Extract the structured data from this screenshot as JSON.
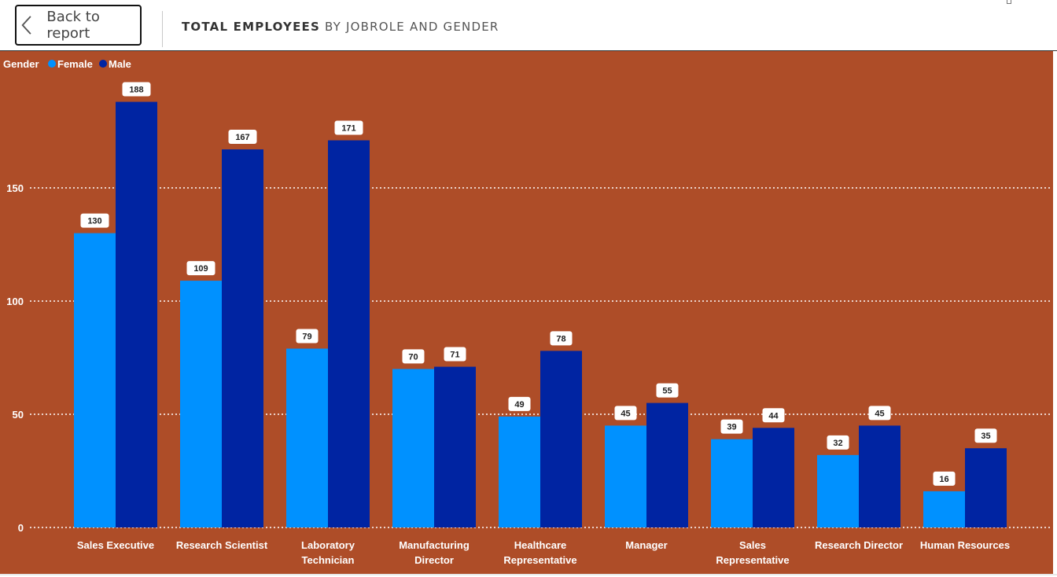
{
  "header": {
    "back_label": "Back to report",
    "title": "TOTAL EMPLOYEES",
    "subtitle": "BY JOBROLE AND GENDER"
  },
  "colors": {
    "background": "#AE4D28",
    "female": "#0091FF",
    "male": "#0024A2",
    "text": "#FFFFFF"
  },
  "legend": {
    "title": "Gender",
    "items": [
      "Female",
      "Male"
    ],
    "placement": "top-left"
  },
  "chart_data": {
    "type": "bar",
    "title": "",
    "xlabel": "",
    "ylabel": "",
    "categories": [
      [
        "Sales Executive"
      ],
      [
        "Research Scientist"
      ],
      [
        "Laboratory",
        "Technician"
      ],
      [
        "Manufacturing",
        "Director"
      ],
      [
        "Healthcare",
        "Representative"
      ],
      [
        "Manager"
      ],
      [
        "Sales",
        "Representative"
      ],
      [
        "Research Director"
      ],
      [
        "Human Resources"
      ]
    ],
    "series": [
      {
        "name": "Female",
        "values": [
          130,
          109,
          79,
          70,
          49,
          45,
          39,
          32,
          16
        ]
      },
      {
        "name": "Male",
        "values": [
          188,
          167,
          171,
          71,
          78,
          55,
          44,
          45,
          35
        ]
      }
    ],
    "yticks": [
      0,
      50,
      100,
      150
    ],
    "ylim": [
      0,
      200
    ],
    "grid": true,
    "data_labels": true
  }
}
